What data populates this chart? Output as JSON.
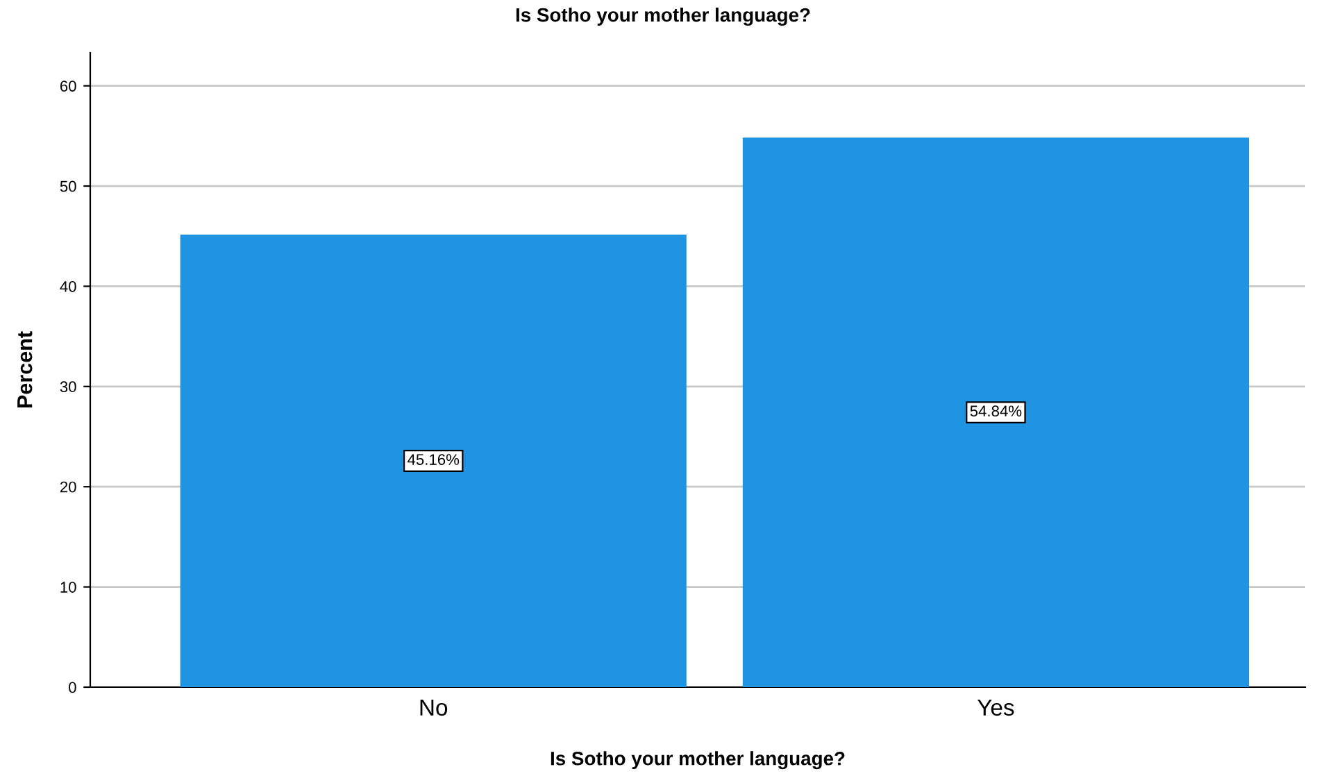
{
  "chart_data": {
    "type": "bar",
    "title": "Is Sotho your mother language?",
    "xlabel": "Is Sotho your mother language?",
    "ylabel": "Percent",
    "categories": [
      "No",
      "Yes"
    ],
    "values": [
      45.16,
      54.84
    ],
    "value_labels": [
      "45.16%",
      "54.84%"
    ],
    "color": "#1f94e3",
    "ylim": [
      0,
      63.3
    ],
    "yticks": [
      0,
      10,
      20,
      30,
      40,
      50,
      60
    ],
    "grid": "y",
    "legend": false
  }
}
